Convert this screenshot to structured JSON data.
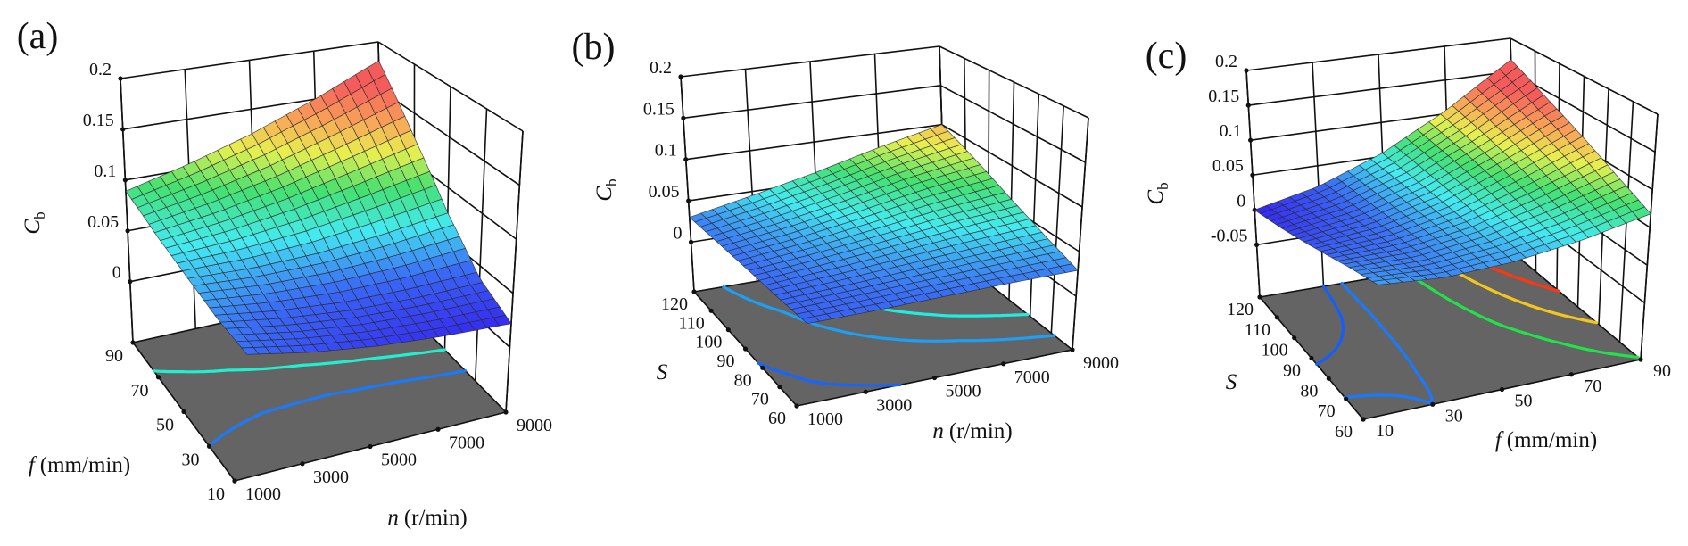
{
  "chart_data": [
    {
      "type": "surface3d",
      "panel_label": "(a)",
      "x_label": {
        "var": "n",
        "unit": "(r/min)"
      },
      "y_label": {
        "var": "f",
        "unit": "(mm/min)"
      },
      "z_label": {
        "var": "C",
        "sub": "b"
      },
      "x_ticks": [
        1000,
        3000,
        5000,
        7000,
        9000
      ],
      "y_ticks": [
        10,
        30,
        50,
        70,
        90
      ],
      "z_ticks": [
        0,
        0.05,
        0.1,
        0.15,
        0.2
      ],
      "x_range": [
        1000,
        9000
      ],
      "y_range": [
        10,
        90
      ],
      "z_range": [
        -0.06,
        0.2
      ],
      "grid_x": [
        1000,
        3000,
        5000,
        7000,
        9000
      ],
      "grid_y": [
        10,
        30,
        50,
        70,
        90
      ],
      "z": [
        [
          0.045,
          0.035,
          0.028,
          0.024,
          0.022
        ],
        [
          0.05,
          0.042,
          0.037,
          0.036,
          0.038
        ],
        [
          0.06,
          0.058,
          0.06,
          0.066,
          0.075
        ],
        [
          0.072,
          0.08,
          0.092,
          0.108,
          0.125
        ],
        [
          0.089,
          0.105,
          0.125,
          0.15,
          0.18
        ]
      ],
      "color_range": [
        0.02,
        0.16
      ],
      "contour_levels": [
        0.05,
        0.075,
        0.16
      ]
    },
    {
      "type": "surface3d",
      "panel_label": "(b)",
      "x_label": {
        "var": "n",
        "unit": "(r/min)"
      },
      "y_label": {
        "var": "S",
        "unit": ""
      },
      "z_label": {
        "var": "C",
        "sub": "b"
      },
      "x_ticks": [
        1000,
        3000,
        5000,
        7000,
        9000
      ],
      "y_ticks": [
        60,
        70,
        80,
        90,
        100,
        110,
        120
      ],
      "z_ticks": [
        0,
        0.05,
        0.1,
        0.15,
        0.2
      ],
      "x_range": [
        1000,
        9000
      ],
      "y_range": [
        60,
        120
      ],
      "z_range": [
        -0.06,
        0.2
      ],
      "grid_x": [
        1000,
        3000,
        5000,
        7000,
        9000
      ],
      "grid_y": [
        60,
        75,
        90,
        105,
        120
      ],
      "z": [
        [
          0.023,
          0.024,
          0.026,
          0.028,
          0.029
        ],
        [
          0.024,
          0.028,
          0.033,
          0.038,
          0.043
        ],
        [
          0.026,
          0.033,
          0.042,
          0.052,
          0.06
        ],
        [
          0.028,
          0.038,
          0.052,
          0.068,
          0.08
        ],
        [
          0.03,
          0.045,
          0.062,
          0.082,
          0.1
        ]
      ],
      "color_range": [
        0.005,
        0.125
      ],
      "contour_levels": [
        0.025,
        0.037,
        0.05
      ]
    },
    {
      "type": "surface3d",
      "panel_label": "(c)",
      "x_label": {
        "var": "f",
        "unit": "(mm/min)"
      },
      "y_label": {
        "var": "S",
        "unit": ""
      },
      "z_label": {
        "var": "C",
        "sub": "b"
      },
      "x_ticks": [
        10,
        30,
        50,
        70,
        90
      ],
      "y_ticks": [
        60,
        70,
        80,
        90,
        100,
        110,
        120
      ],
      "z_ticks": [
        -0.05,
        0,
        0.05,
        0.1,
        0.15,
        0.2
      ],
      "x_range": [
        10,
        90
      ],
      "y_range": [
        60,
        120
      ],
      "z_range": [
        -0.125,
        0.2
      ],
      "grid_x": [
        10,
        30,
        50,
        70,
        90
      ],
      "grid_y": [
        60,
        75,
        90,
        105,
        120
      ],
      "z": [
        [
          0.035,
          0.03,
          0.035,
          0.048,
          0.068
        ],
        [
          0.028,
          0.028,
          0.04,
          0.062,
          0.09
        ],
        [
          0.018,
          0.025,
          0.045,
          0.078,
          0.115
        ],
        [
          0.008,
          0.022,
          0.05,
          0.092,
          0.14
        ],
        [
          0.0,
          0.02,
          0.055,
          0.105,
          0.168
        ]
      ],
      "color_range": [
        0.0,
        0.14
      ],
      "contour_levels": [
        0.02,
        0.03,
        0.07,
        0.1,
        0.13
      ]
    }
  ]
}
